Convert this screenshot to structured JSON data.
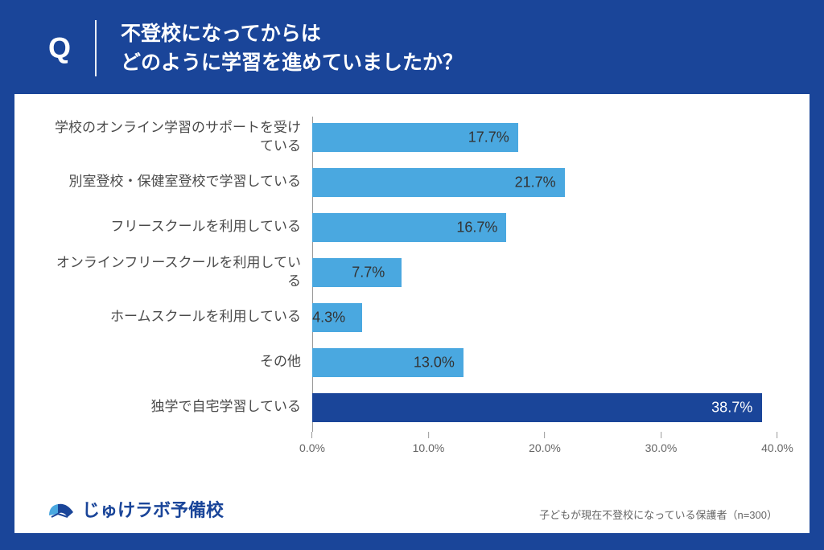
{
  "header": {
    "q_letter": "Q",
    "question_line1": "不登校になってからは",
    "question_line2": "どのように学習を進めていましたか？"
  },
  "chart": {
    "type": "bar",
    "orientation": "horizontal",
    "xlim": [
      0,
      40
    ],
    "xtick_step": 10,
    "xtick_format_suffix": ".0%",
    "background_color": "#ffffff",
    "axis_color": "#999999",
    "label_color": "#4a4a4a",
    "label_fontsize": 17,
    "value_fontsize": 18,
    "tick_fontsize": 14,
    "categories": [
      {
        "label": "学校のオンライン学習のサポートを受けている",
        "value": 17.7,
        "color": "#4aa8e0",
        "value_color": "#333333",
        "value_inside": false,
        "highlight": false
      },
      {
        "label": "別室登校・保健室登校で学習している",
        "value": 21.7,
        "color": "#4aa8e0",
        "value_color": "#333333",
        "value_inside": false,
        "highlight": false
      },
      {
        "label": "フリースクールを利用している",
        "value": 16.7,
        "color": "#4aa8e0",
        "value_color": "#333333",
        "value_inside": false,
        "highlight": false
      },
      {
        "label": "オンラインフリースクールを利用している",
        "value": 7.7,
        "color": "#4aa8e0",
        "value_color": "#333333",
        "value_inside": false,
        "highlight": false
      },
      {
        "label": "ホームスクールを利用している",
        "value": 4.3,
        "color": "#4aa8e0",
        "value_color": "#333333",
        "value_inside": false,
        "highlight": false
      },
      {
        "label": "その他",
        "value": 13.0,
        "color": "#4aa8e0",
        "value_color": "#333333",
        "value_inside": false,
        "highlight": false
      },
      {
        "label": "独学で自宅学習している",
        "value": 38.7,
        "color": "#1a4599",
        "value_color": "#ffffff",
        "value_inside": true,
        "highlight": true
      }
    ],
    "xticks": [
      "0.0%",
      "10.0%",
      "20.0%",
      "30.0%",
      "40.0%"
    ]
  },
  "footer": {
    "logo_text": "じゅけラボ予備校",
    "logo_color": "#1a4599",
    "note": "子どもが現在不登校になっている保護者（n=300）"
  },
  "colors": {
    "page_bg": "#1a4599",
    "panel_bg": "#ffffff",
    "bar_default": "#4aa8e0",
    "bar_highlight": "#1a4599",
    "text_white": "#ffffff"
  }
}
